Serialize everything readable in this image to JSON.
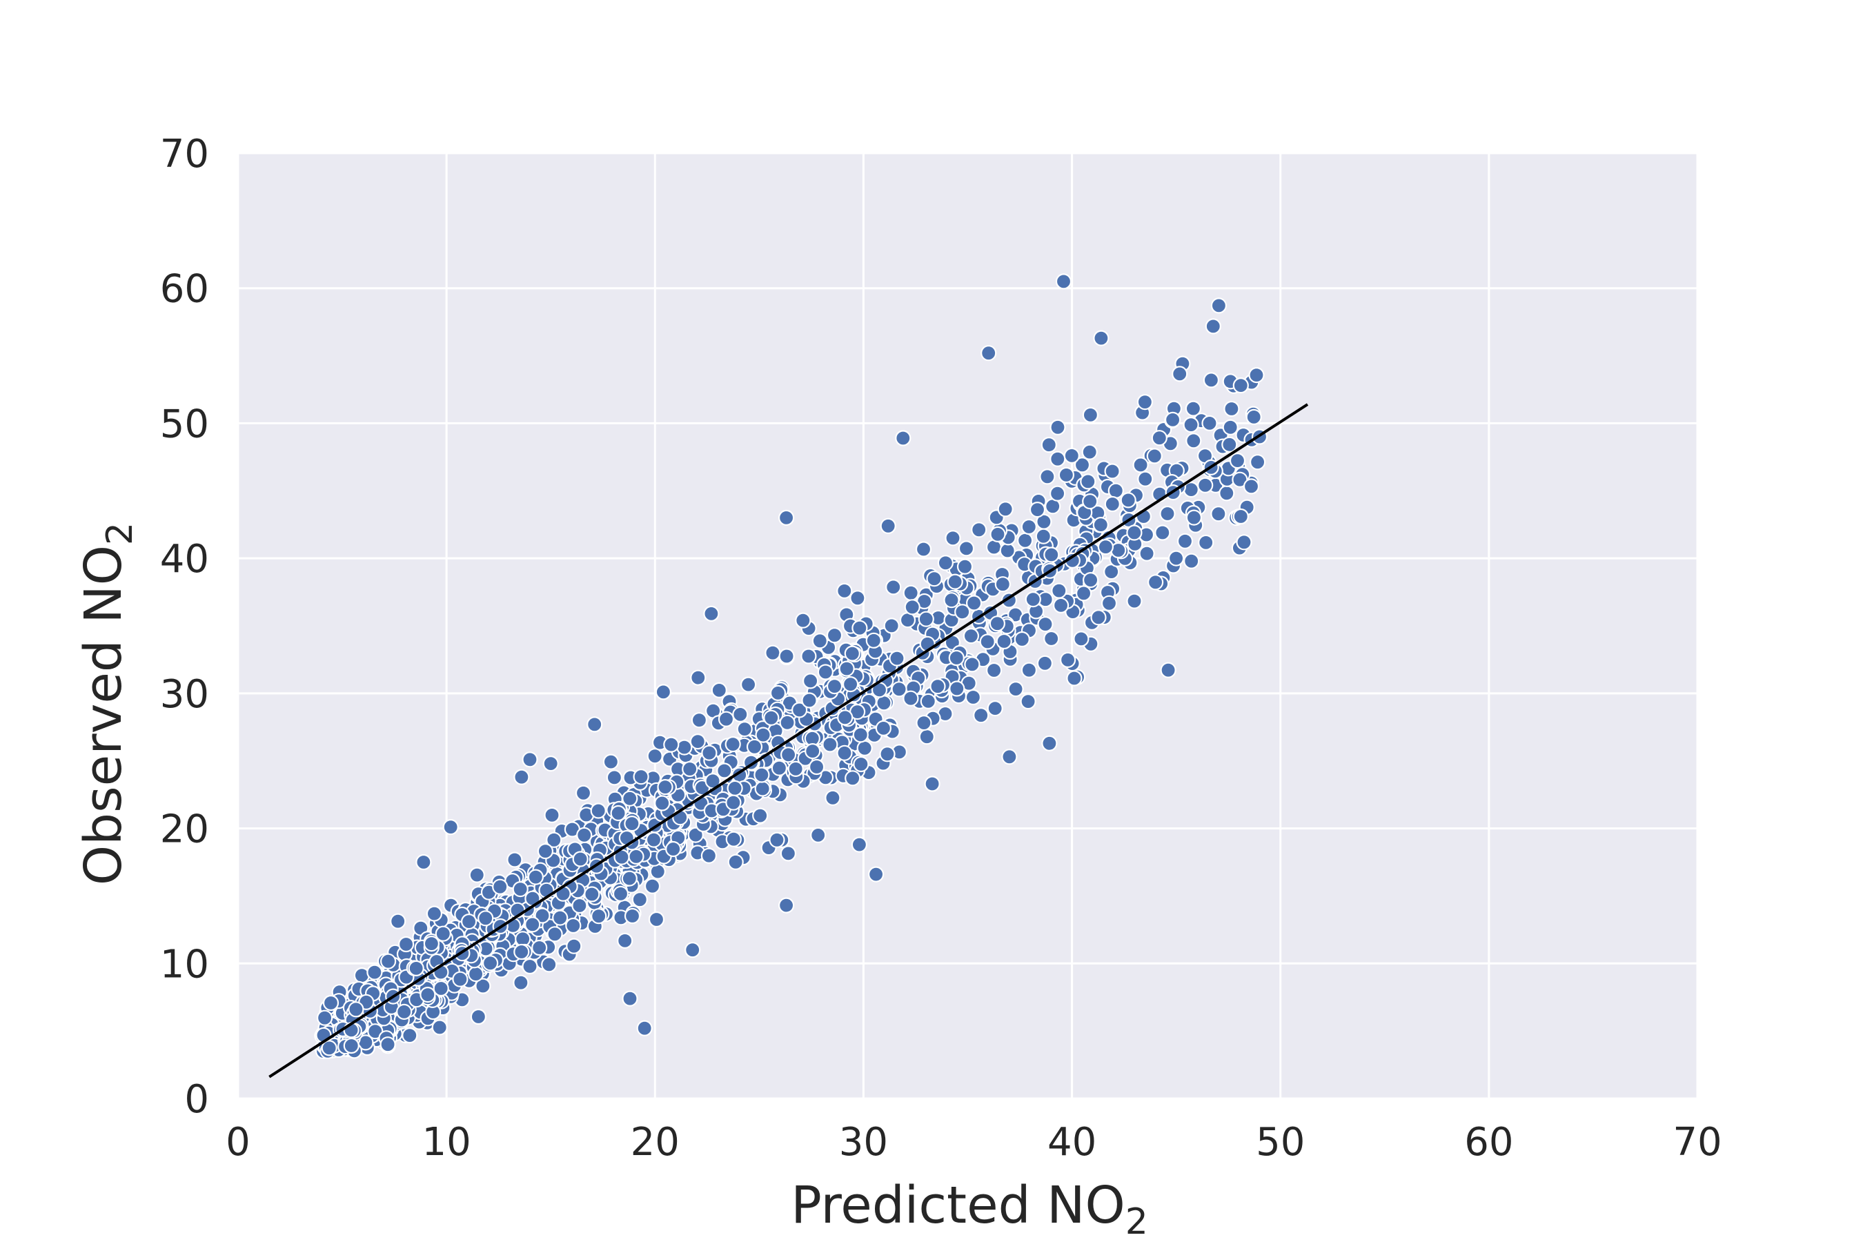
{
  "chart_data": {
    "type": "scatter",
    "title": "",
    "xlabel": "Predicted NO",
    "xlabel_sub": "2",
    "ylabel": "Observed NO",
    "ylabel_sub": "2",
    "xlim": [
      0,
      70
    ],
    "ylim": [
      0,
      70
    ],
    "xticks": [
      "0",
      "10",
      "20",
      "30",
      "40",
      "50",
      "60",
      "70"
    ],
    "yticks": [
      "0",
      "10",
      "20",
      "30",
      "40",
      "50",
      "60",
      "70"
    ],
    "grid": true,
    "background": "#EAEAF2",
    "marker_color": "#4C72B0",
    "line_color": "#000000",
    "reference_line": {
      "x": [
        1.5,
        51.3
      ],
      "y": [
        1.6,
        51.4
      ]
    },
    "highlighted_outliers": [
      {
        "x": 39.6,
        "y": 60.5
      },
      {
        "x": 41.4,
        "y": 56.3
      },
      {
        "x": 36.0,
        "y": 55.2
      },
      {
        "x": 48.1,
        "y": 52.8
      },
      {
        "x": 31.9,
        "y": 48.9
      },
      {
        "x": 38.9,
        "y": 48.4
      },
      {
        "x": 26.3,
        "y": 43.0
      },
      {
        "x": 22.7,
        "y": 35.9
      },
      {
        "x": 20.4,
        "y": 30.1
      },
      {
        "x": 37.0,
        "y": 25.3
      },
      {
        "x": 33.3,
        "y": 23.3
      },
      {
        "x": 30.6,
        "y": 16.6
      },
      {
        "x": 26.3,
        "y": 14.3
      },
      {
        "x": 21.8,
        "y": 11.0
      },
      {
        "x": 18.8,
        "y": 7.4
      },
      {
        "x": 19.5,
        "y": 5.2
      },
      {
        "x": 14.0,
        "y": 25.1
      },
      {
        "x": 10.2,
        "y": 20.1
      },
      {
        "x": 8.9,
        "y": 17.5
      },
      {
        "x": 17.1,
        "y": 27.7
      },
      {
        "x": 27.1,
        "y": 35.4
      },
      {
        "x": 46.6,
        "y": 50.0
      },
      {
        "x": 47.6,
        "y": 49.7
      },
      {
        "x": 49.0,
        "y": 49.0
      },
      {
        "x": 48.1,
        "y": 43.1
      },
      {
        "x": 45.0,
        "y": 40.0
      },
      {
        "x": 37.9,
        "y": 29.4
      },
      {
        "x": 29.8,
        "y": 18.8
      },
      {
        "x": 13.6,
        "y": 23.8
      },
      {
        "x": 15.0,
        "y": 24.8
      }
    ],
    "cloud": {
      "n": 1900,
      "x_range": [
        4.0,
        49.0
      ],
      "relation": "y ≈ x",
      "description_of_spread": "dense band around the identity line"
    }
  }
}
